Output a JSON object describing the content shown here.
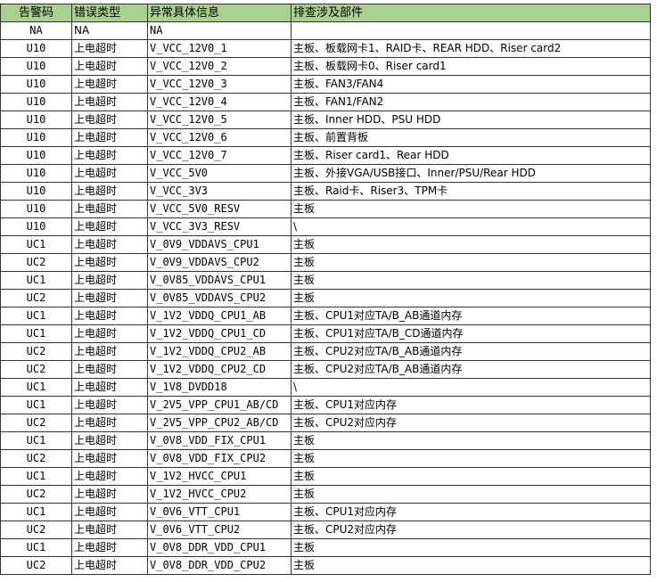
{
  "table": {
    "headers": [
      "告警码",
      "错误类型",
      "异常具体信息",
      "排查涉及部件"
    ],
    "rows": [
      [
        "NA",
        "NA",
        "NA",
        ""
      ],
      [
        "U10",
        "上电超时",
        "V_VCC_12V0_1",
        "主板、板载网卡1、RAID卡、REAR HDD、Riser card2"
      ],
      [
        "U10",
        "上电超时",
        "V_VCC_12V0_2",
        "主板、板载网卡0、Riser card1"
      ],
      [
        "U10",
        "上电超时",
        "V_VCC_12V0_3",
        "主板、FAN3/FAN4"
      ],
      [
        "U10",
        "上电超时",
        "V_VCC_12V0_4",
        "主板、FAN1/FAN2"
      ],
      [
        "U10",
        "上电超时",
        "V_VCC_12V0_5",
        "主板、Inner HDD、PSU HDD"
      ],
      [
        "U10",
        "上电超时",
        "V_VCC_12V0_6",
        "主板、前置背板"
      ],
      [
        "U10",
        "上电超时",
        "V_VCC_12V0_7",
        "主板、Riser card1、Rear HDD"
      ],
      [
        "U10",
        "上电超时",
        "V_VCC_5V0",
        "主板、外接VGA/USB接口、Inner/PSU/Rear HDD"
      ],
      [
        "U10",
        "上电超时",
        "V_VCC_3V3",
        "主板、Raid卡、Riser3、TPM卡"
      ],
      [
        "U10",
        "上电超时",
        "V_VCC_5V0_RESV",
        "主板"
      ],
      [
        "U10",
        "上电超时",
        "V_VCC_3V3_RESV",
        "\\"
      ],
      [
        "UC1",
        "上电超时",
        "V_0V9_VDDAVS_CPU1",
        "主板"
      ],
      [
        "UC2",
        "上电超时",
        "V_0V9_VDDAVS_CPU2",
        "主板"
      ],
      [
        "UC1",
        "上电超时",
        "V_0V85_VDDAVS_CPU1",
        "主板"
      ],
      [
        "UC2",
        "上电超时",
        "V_0V85_VDDAVS_CPU2",
        "主板"
      ],
      [
        "UC1",
        "上电超时",
        "V_1V2_VDDQ_CPU1_AB",
        "主板、CPU1对应TA/B_AB通道内存"
      ],
      [
        "UC1",
        "上电超时",
        "V_1V2_VDDQ_CPU1_CD",
        "主板、CPU1对应TA/B_CD通道内存"
      ],
      [
        "UC2",
        "上电超时",
        "V_1V2_VDDQ_CPU2_AB",
        "主板、CPU2对应TA/B_AB通道内存"
      ],
      [
        "UC2",
        "上电超时",
        "V_1V2_VDDQ_CPU2_CD",
        "主板、CPU2对应TA/B_AB通道内存"
      ],
      [
        "UC1",
        "上电超时",
        "V_1V8_DVDD18",
        "\\"
      ],
      [
        "UC1",
        "上电超时",
        "V_2V5_VPP_CPU1_AB/CD",
        "主板、CPU1对应内存"
      ],
      [
        "UC2",
        "上电超时",
        "V_2V5_VPP_CPU2_AB/CD",
        "主板、CPU2对应内存"
      ],
      [
        "UC1",
        "上电超时",
        "V_0V8_VDD_FIX_CPU1",
        "主板"
      ],
      [
        "UC2",
        "上电超时",
        "V_0V8_VDD_FIX_CPU2",
        "主板"
      ],
      [
        "UC1",
        "上电超时",
        "V_1V2_HVCC_CPU1",
        "主板"
      ],
      [
        "UC2",
        "上电超时",
        "V_1V2_HVCC_CPU2",
        "主板"
      ],
      [
        "UC1",
        "上电超时",
        "V_0V6_VTT_CPU1",
        "主板、CPU1对应内存"
      ],
      [
        "UC2",
        "上电超时",
        "V_0V6_VTT_CPU2",
        "主板、CPU2对应内存"
      ],
      [
        "UC1",
        "上电超时",
        "V_0V8_DDR_VDD_CPU1",
        "主板"
      ],
      [
        "UC2",
        "上电超时",
        "V_0V8_DDR_VDD_CPU2",
        "主板"
      ]
    ]
  },
  "colors": {
    "header_bg": "#a9d08e"
  }
}
